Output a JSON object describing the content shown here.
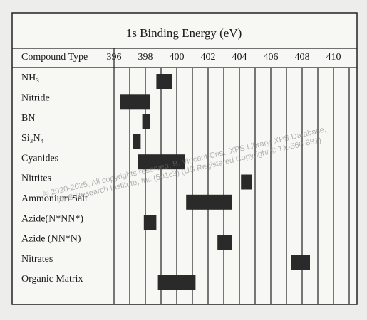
{
  "chart_data": {
    "type": "range",
    "title": "1s Binding Energy (eV)",
    "category_header": "Compound Type",
    "categories": [
      "NH₃",
      "Nitride",
      "BN",
      "Si₃N₄",
      "Cyanides",
      "Nitrites",
      "Ammonium Salt",
      "Azide(N*NN*)",
      "Azide (NN*N)",
      "Nitrates",
      "Organic Matrix"
    ],
    "starts": [
      398.7,
      396.4,
      397.8,
      397.2,
      397.5,
      404.1,
      400.6,
      397.9,
      402.6,
      407.3,
      398.8
    ],
    "ends": [
      399.7,
      398.3,
      398.3,
      397.7,
      400.5,
      404.8,
      403.5,
      398.7,
      403.5,
      408.5,
      401.2
    ],
    "color": "#2a2a2a",
    "xlim": [
      396,
      411.5
    ],
    "xticks": [
      396,
      398,
      400,
      402,
      404,
      406,
      408,
      410
    ],
    "minor_xticks": [
      397,
      399,
      401,
      403,
      405,
      407,
      409,
      411
    ],
    "grid": true,
    "watermark": [
      "© 2020-2025, All copyrights reserved, B. Vincent Crist, XPS Library, XPS Database,",
      "XPS Research Institute, Inc (501c3) (US Registered Copyright © TX-560-881)"
    ]
  }
}
